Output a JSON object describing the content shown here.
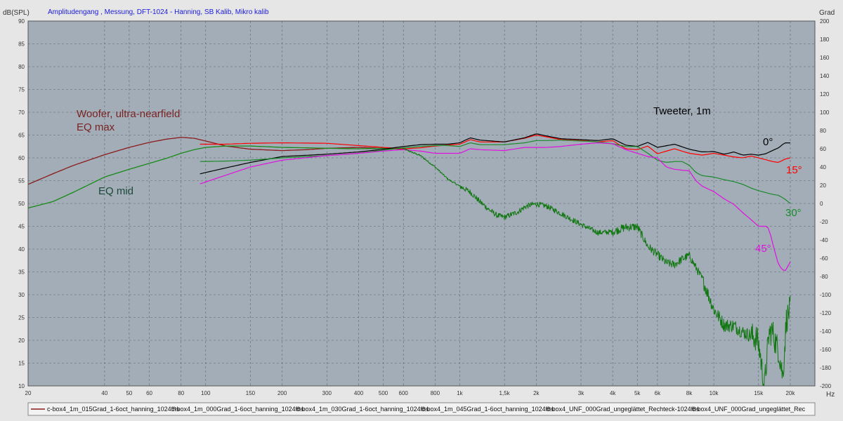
{
  "chart_data": {
    "type": "line",
    "title": "Amplitudengang , Messung, DFT-1024 - Hanning, SB Kalib, Mikro kalib",
    "ylabel": "dB(SPL)",
    "y2label": "Grad",
    "xlabel": "Hz",
    "xscale": "log",
    "xlim": [
      20,
      25000
    ],
    "ylim": [
      10,
      90
    ],
    "y2lim": [
      -200,
      200
    ],
    "grid": true,
    "background_color": "#a2adb7",
    "x_ticks": [
      {
        "v": 20,
        "label": "20"
      },
      {
        "v": 40,
        "label": "40"
      },
      {
        "v": 50,
        "label": "50"
      },
      {
        "v": 60,
        "label": "60"
      },
      {
        "v": 80,
        "label": "80"
      },
      {
        "v": 100,
        "label": "100"
      },
      {
        "v": 150,
        "label": "150"
      },
      {
        "v": 200,
        "label": "200"
      },
      {
        "v": 300,
        "label": "300"
      },
      {
        "v": 400,
        "label": "400"
      },
      {
        "v": 500,
        "label": "500"
      },
      {
        "v": 600,
        "label": "600"
      },
      {
        "v": 800,
        "label": "800"
      },
      {
        "v": 1000,
        "label": "1k"
      },
      {
        "v": 1500,
        "label": "1,5k"
      },
      {
        "v": 2000,
        "label": "2k"
      },
      {
        "v": 3000,
        "label": "3k"
      },
      {
        "v": 4000,
        "label": "4k"
      },
      {
        "v": 5000,
        "label": "5k"
      },
      {
        "v": 6000,
        "label": "6k"
      },
      {
        "v": 8000,
        "label": "8k"
      },
      {
        "v": 10000,
        "label": "10k"
      },
      {
        "v": 15000,
        "label": "15k"
      },
      {
        "v": 20000,
        "label": "20k"
      }
    ],
    "y_ticks": [
      10,
      15,
      20,
      25,
      30,
      35,
      40,
      45,
      50,
      55,
      60,
      65,
      70,
      75,
      80,
      85,
      90
    ],
    "y2_ticks": [
      -200,
      -180,
      -160,
      -140,
      -120,
      -100,
      -80,
      -60,
      -40,
      -20,
      0,
      20,
      40,
      60,
      80,
      100,
      120,
      140,
      160,
      180,
      200
    ],
    "series": [
      {
        "name": "c-box4_UNF_000Grad_ungeglättet_Rechteck-1024ffts",
        "color": "#8b1a1a",
        "width": 1.3,
        "x": [
          20,
          25,
          30,
          40,
          50,
          60,
          70,
          80,
          90,
          100,
          120,
          150,
          200,
          250,
          300,
          400,
          500,
          600
        ],
        "y": [
          54.2,
          56.5,
          58.3,
          60.7,
          62.3,
          63.4,
          64.1,
          64.5,
          64.3,
          63.7,
          62.6,
          61.9,
          61.6,
          61.8,
          62.1,
          62.3,
          62.1,
          61.9
        ]
      },
      {
        "name": "c-box4_UNF_000Grad_ungeglättet_Rechteck-1024ffts",
        "color": "#188a18",
        "width": 1.3,
        "x": [
          20,
          25,
          30,
          40,
          50,
          60,
          70,
          80,
          90,
          100,
          120,
          150,
          200,
          250,
          300,
          400,
          500,
          600
        ],
        "y": [
          49.0,
          50.4,
          52.4,
          55.8,
          57.5,
          58.8,
          59.9,
          61.0,
          61.8,
          62.3,
          62.6,
          62.6,
          62.3,
          62.2,
          62.1,
          62.0,
          62.1,
          62.0
        ]
      },
      {
        "name": "c-box4_1m_015Grad_1-6oct_hanning_1024ffts",
        "color": "#ff0000",
        "width": 1.2,
        "x": [
          95,
          120,
          150,
          200,
          300,
          400,
          500,
          600,
          700,
          800,
          900,
          1000,
          1100,
          1200,
          1500,
          1800,
          2000,
          2200,
          2500,
          3000,
          3500,
          4000,
          4500,
          5000,
          5500,
          6000,
          7000,
          8000,
          9000,
          10000,
          11000,
          12000,
          13000,
          14000,
          15000,
          16000,
          17000,
          18000,
          19000,
          20000
        ],
        "y": [
          63.0,
          63.0,
          63.2,
          63.3,
          63.2,
          62.7,
          62.3,
          62.0,
          62.2,
          62.6,
          62.8,
          63.0,
          64.0,
          63.5,
          63.5,
          64.3,
          65.0,
          64.6,
          64.0,
          63.8,
          63.5,
          63.8,
          62.0,
          61.8,
          62.6,
          60.9,
          62.0,
          61.0,
          60.6,
          61.0,
          60.6,
          60.2,
          60.0,
          60.4,
          60.0,
          59.6,
          59.2,
          59.0,
          59.7,
          60.0
        ]
      },
      {
        "name": "c-box4_1m_000Grad_1-6oct_hanning_1024ffts",
        "color": "#000000",
        "width": 1.2,
        "x": [
          95,
          120,
          150,
          200,
          300,
          400,
          500,
          600,
          700,
          800,
          900,
          1000,
          1100,
          1200,
          1500,
          1800,
          2000,
          2200,
          2500,
          3000,
          3500,
          4000,
          4500,
          5000,
          5500,
          6000,
          7000,
          8000,
          9000,
          10000,
          11000,
          12000,
          13000,
          14000,
          15000,
          16000,
          17000,
          18000,
          19000,
          20000
        ],
        "y": [
          56.5,
          57.8,
          59.0,
          60.3,
          60.8,
          61.3,
          61.9,
          62.5,
          62.9,
          63.0,
          63.0,
          63.3,
          64.4,
          63.9,
          63.5,
          64.4,
          65.3,
          64.8,
          64.2,
          64.0,
          63.8,
          64.2,
          62.8,
          62.5,
          63.4,
          62.3,
          63.0,
          61.9,
          61.3,
          61.4,
          60.8,
          61.3,
          60.6,
          60.8,
          60.6,
          60.9,
          61.6,
          62.2,
          63.3,
          63.3
        ]
      },
      {
        "name": "c-box4_1m_030Grad_1-6oct_hanning_1024ffts",
        "color": "#1a8a2a",
        "width": 1.2,
        "x": [
          95,
          120,
          150,
          200,
          300,
          400,
          500,
          600,
          700,
          800,
          900,
          1000,
          1100,
          1200,
          1500,
          1800,
          2000,
          2200,
          2500,
          3000,
          3500,
          4000,
          4500,
          5000,
          5500,
          6000,
          6500,
          7000,
          7500,
          8000,
          8500,
          9000,
          10000,
          11000,
          12000,
          13000,
          14000,
          15000,
          16000,
          17000,
          18000,
          19000,
          20000
        ],
        "y": [
          59.2,
          59.3,
          59.5,
          60.0,
          60.5,
          61.0,
          61.7,
          62.2,
          62.5,
          62.7,
          62.7,
          62.5,
          63.3,
          62.9,
          62.9,
          63.3,
          63.8,
          63.8,
          63.9,
          63.7,
          63.5,
          63.1,
          62.5,
          62.5,
          61.0,
          59.5,
          59.0,
          59.2,
          59.2,
          58.4,
          56.8,
          56.1,
          55.8,
          55.2,
          54.8,
          54.2,
          53.4,
          52.8,
          52.4,
          52.0,
          51.8,
          51.0,
          50.0
        ]
      },
      {
        "name": "c-box4_1m_045Grad_1-6oct_hanning_1024ffts",
        "color": "#e011e0",
        "width": 1.2,
        "x": [
          95,
          120,
          150,
          200,
          300,
          400,
          500,
          600,
          700,
          800,
          900,
          1000,
          1100,
          1200,
          1500,
          1800,
          2000,
          2200,
          2500,
          3000,
          3500,
          4000,
          4500,
          5000,
          5500,
          6000,
          6500,
          7000,
          7500,
          8000,
          8500,
          9000,
          10000,
          11000,
          12000,
          13000,
          14000,
          15000,
          16000,
          16500,
          17000,
          18000,
          19000,
          20000
        ],
        "y": [
          54.3,
          56.2,
          58.0,
          59.5,
          60.5,
          61.0,
          61.5,
          61.8,
          61.5,
          61.0,
          61.0,
          61.0,
          62.0,
          61.8,
          61.6,
          62.3,
          62.3,
          62.3,
          62.5,
          63.0,
          63.3,
          63.1,
          61.8,
          61.0,
          60.3,
          60.0,
          58.0,
          57.5,
          57.3,
          57.2,
          55.0,
          53.8,
          52.6,
          51.0,
          49.8,
          48.0,
          46.5,
          45.0,
          45.0,
          44.5,
          41.5,
          36.5,
          35.0,
          37.2
        ]
      },
      {
        "name": "c-box4_UNF_000Grad_ungeglättet_Rechteck-1024ffts",
        "color": "#117711",
        "width": 1.0,
        "noise": true,
        "x": [
          600,
          700,
          800,
          900,
          1000,
          1100,
          1200,
          1300,
          1400,
          1500,
          1600,
          1700,
          1800,
          1900,
          2000,
          2200,
          2500,
          3000,
          3500,
          4000,
          4500,
          5000,
          5500,
          6000,
          6500,
          7000,
          7500,
          8000,
          9000,
          10000,
          11000,
          12000,
          13000,
          14000,
          14800,
          15200,
          15800,
          16500,
          17000,
          17500,
          18000,
          18700,
          19300,
          20000
        ],
        "y": [
          62.0,
          60.5,
          58.0,
          55.3,
          53.8,
          52.5,
          50.4,
          48.7,
          47.4,
          47.0,
          47.6,
          48.2,
          49.2,
          49.7,
          49.9,
          49.4,
          47.8,
          45.4,
          43.6,
          43.8,
          44.8,
          44.9,
          40.6,
          38.8,
          37.0,
          36.6,
          37.8,
          38.6,
          33.5,
          26.8,
          23.3,
          23.2,
          21.8,
          21.0,
          20.4,
          17.3,
          9.5,
          21.5,
          22.0,
          19.5,
          17.8,
          12.0,
          24.5,
          27.0
        ]
      }
    ],
    "annotations": [
      {
        "text": "Woofer, ultra-nearfield",
        "color": "#7a2222"
      },
      {
        "text": "EQ max",
        "color": "#7a2222"
      },
      {
        "text": "EQ mid",
        "color": "#1c4a3a"
      },
      {
        "text": "Tweeter, 1m",
        "color": "#000000"
      },
      {
        "text": "0°",
        "color": "#000000"
      },
      {
        "text": "15°",
        "color": "#ff0000"
      },
      {
        "text": "30°",
        "color": "#1a8a2a"
      },
      {
        "text": "45°",
        "color": "#e011e0"
      }
    ],
    "legend": [
      {
        "text": "c-box4_1m_015Grad_1-6oct_hanning_1024ffts",
        "color": "#8b1a1a"
      },
      {
        "text": "c-box4_1m_000Grad_1-6oct_hanning_1024ffts",
        "color": "#000000"
      },
      {
        "text": "c-box4_1m_030Grad_1-6oct_hanning_1024ffts",
        "color": "#1a8a2a"
      },
      {
        "text": "c-box4_1m_045Grad_1-6oct_hanning_1024ffts",
        "color": "#e011e0"
      },
      {
        "text": "c-box4_UNF_000Grad_ungeglättet_Rechteck-1024ffts",
        "color": "#117711"
      },
      {
        "text": "c-box4_UNF_000Grad_ungeglättet_Rec",
        "color": "#117711"
      }
    ]
  }
}
